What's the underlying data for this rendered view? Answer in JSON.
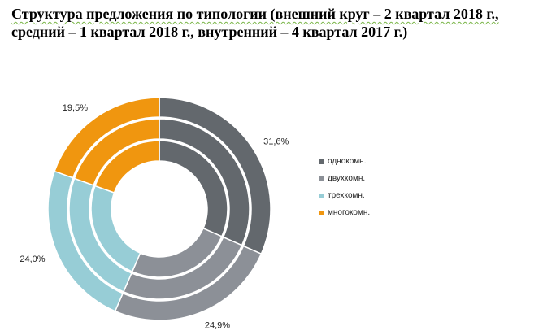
{
  "title": {
    "line1": "Структура предложения по типологии (внешний круг – 2 квартал 2018 г.,",
    "line2": "средний – 1 квартал 2018 г., внутренний – 4 квартал 2017 г.)"
  },
  "chart_data": {
    "type": "donut",
    "categories": [
      "однокомн.",
      "двухкомн.",
      "трехкомн.",
      "многокомн."
    ],
    "colors": [
      "#63686d",
      "#8c9097",
      "#97cdd6",
      "#f0960f"
    ],
    "rings": [
      {
        "name": "4 квартал 2017 г.",
        "position": "inner",
        "values": [
          31.6,
          24.9,
          24.0,
          19.5
        ]
      },
      {
        "name": "1 квартал 2018 г.",
        "position": "middle",
        "values": [
          31.6,
          24.9,
          24.0,
          19.5
        ]
      },
      {
        "name": "2 квартал 2018 г.",
        "position": "outer",
        "values": [
          31.6,
          24.9,
          24.0,
          19.5
        ]
      }
    ],
    "data_labels": [
      "31,6%",
      "24,9%",
      "24,0%",
      "19,5%"
    ],
    "legend_position": "right"
  }
}
